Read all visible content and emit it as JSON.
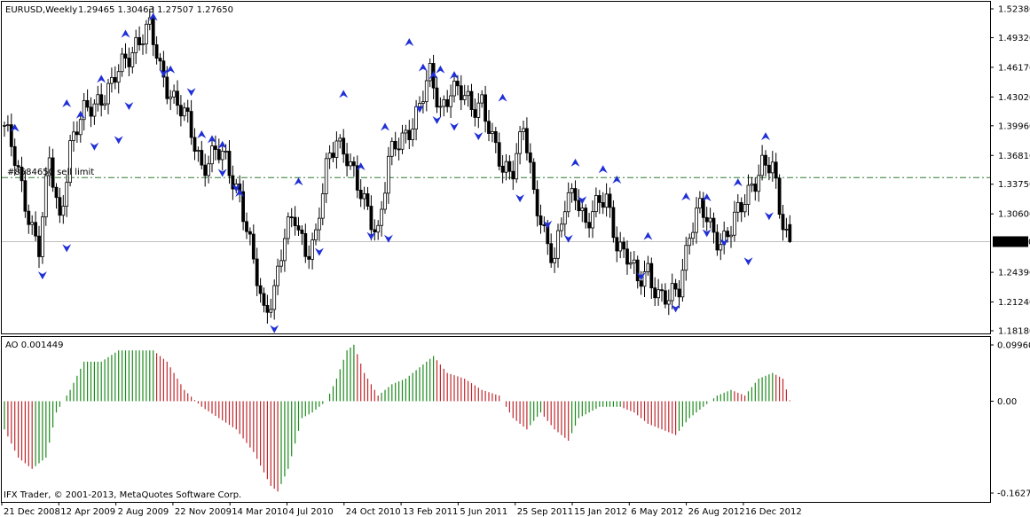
{
  "window": {
    "symbol_header": "EURUSD,Weekly",
    "ohlc_header": "1.29465 1.30463 1.27507 1.27650",
    "level_label": "#8584650 sell limit",
    "copyright": "IFX Trader, © 2001-2013, MetaQuotes Software Corp."
  },
  "colors": {
    "background": "#ffffff",
    "candle": "#000000",
    "fractal": "#1f2fd6",
    "sell_limit_line": "#2e7d32",
    "price_line": "#c0c0c0",
    "ao_up": "#1b8a1b",
    "ao_down": "#c0262c"
  },
  "chart_data": [
    {
      "type": "candlestick",
      "title": "EURUSD,Weekly",
      "timeframe": "Weekly",
      "ylim": [
        1.1818,
        1.5238
      ],
      "y_ticks": [
        "1.52380",
        "1.49320",
        "1.46170",
        "1.43020",
        "1.39960",
        "1.36810",
        "1.33750",
        "1.30600",
        "1.27650",
        "1.24390",
        "1.21240",
        "1.18180"
      ],
      "current_price": {
        "value": 1.2765,
        "label": "1.27650"
      },
      "last_bar": {
        "open": 1.29465,
        "high": 1.30463,
        "low": 1.27507,
        "close": 1.2765
      },
      "sell_limit_level": 1.3445,
      "x_ticks": [
        "21 Dec 2008",
        "12 Apr 2009",
        "2 Aug 2009",
        "22 Nov 2009",
        "14 Mar 2010",
        "4 Jul 2010",
        "24 Oct 2010",
        "13 Feb 2011",
        "5 Jun 2011",
        "25 Sep 2011",
        "15 Jan 2012",
        "6 May 2012",
        "26 Aug 2012",
        "16 Dec 2012"
      ],
      "close_path": [
        [
          0,
          1.4
        ],
        [
          6,
          1.32
        ],
        [
          10,
          1.27
        ],
        [
          13,
          1.36
        ],
        [
          16,
          1.3
        ],
        [
          19,
          1.38
        ],
        [
          23,
          1.41
        ],
        [
          27,
          1.43
        ],
        [
          31,
          1.44
        ],
        [
          35,
          1.47
        ],
        [
          38,
          1.49
        ],
        [
          42,
          1.5
        ],
        [
          45,
          1.46
        ],
        [
          49,
          1.43
        ],
        [
          53,
          1.4
        ],
        [
          57,
          1.36
        ],
        [
          61,
          1.37
        ],
        [
          64,
          1.36
        ],
        [
          68,
          1.33
        ],
        [
          72,
          1.25
        ],
        [
          75,
          1.2
        ],
        [
          78,
          1.23
        ],
        [
          81,
          1.28
        ],
        [
          84,
          1.3
        ],
        [
          87,
          1.27
        ],
        [
          90,
          1.28
        ],
        [
          93,
          1.35
        ],
        [
          96,
          1.39
        ],
        [
          99,
          1.37
        ],
        [
          102,
          1.33
        ],
        [
          105,
          1.31
        ],
        [
          108,
          1.29
        ],
        [
          111,
          1.36
        ],
        [
          114,
          1.38
        ],
        [
          117,
          1.4
        ],
        [
          120,
          1.42
        ],
        [
          123,
          1.45
        ],
        [
          126,
          1.42
        ],
        [
          129,
          1.44
        ],
        [
          132,
          1.43
        ],
        [
          135,
          1.42
        ],
        [
          138,
          1.43
        ],
        [
          141,
          1.38
        ],
        [
          144,
          1.35
        ],
        [
          147,
          1.36
        ],
        [
          150,
          1.4
        ],
        [
          153,
          1.32
        ],
        [
          156,
          1.29
        ],
        [
          159,
          1.26
        ],
        [
          162,
          1.31
        ],
        [
          165,
          1.33
        ],
        [
          168,
          1.3
        ],
        [
          171,
          1.31
        ],
        [
          174,
          1.32
        ],
        [
          177,
          1.28
        ],
        [
          180,
          1.26
        ],
        [
          183,
          1.23
        ],
        [
          186,
          1.25
        ],
        [
          189,
          1.22
        ],
        [
          192,
          1.21
        ],
        [
          195,
          1.23
        ],
        [
          198,
          1.29
        ],
        [
          201,
          1.31
        ],
        [
          204,
          1.29
        ],
        [
          207,
          1.28
        ],
        [
          210,
          1.29
        ],
        [
          213,
          1.31
        ],
        [
          216,
          1.34
        ],
        [
          219,
          1.36
        ],
        [
          222,
          1.35
        ],
        [
          224,
          1.31
        ],
        [
          227,
          1.2765
        ]
      ],
      "fractals": {
        "up": [
          [
            3,
            1.397
          ],
          [
            18,
            1.423
          ],
          [
            22,
            1.411
          ],
          [
            28,
            1.449
          ],
          [
            35,
            1.497
          ],
          [
            43,
            1.515
          ],
          [
            48,
            1.459
          ],
          [
            57,
            1.39
          ],
          [
            60,
            1.385
          ],
          [
            63,
            1.379
          ],
          [
            68,
            1.328
          ],
          [
            85,
            1.34
          ],
          [
            98,
            1.433
          ],
          [
            103,
            1.356
          ],
          [
            110,
            1.398
          ],
          [
            117,
            1.488
          ],
          [
            121,
            1.461
          ],
          [
            124,
            1.453
          ],
          [
            126,
            1.459
          ],
          [
            130,
            1.453
          ],
          [
            144,
            1.429
          ],
          [
            165,
            1.36
          ],
          [
            173,
            1.353
          ],
          [
            177,
            1.342
          ],
          [
            186,
            1.282
          ],
          [
            197,
            1.324
          ],
          [
            203,
            1.323
          ],
          [
            212,
            1.339
          ],
          [
            220,
            1.388
          ]
        ],
        "down": [
          [
            11,
            1.241
          ],
          [
            18,
            1.27
          ],
          [
            26,
            1.378
          ],
          [
            33,
            1.385
          ],
          [
            36,
            1.421
          ],
          [
            46,
            1.456
          ],
          [
            54,
            1.436
          ],
          [
            63,
            1.35
          ],
          [
            67,
            1.334
          ],
          [
            78,
            1.184
          ],
          [
            91,
            1.266
          ],
          [
            106,
            1.283
          ],
          [
            111,
            1.28
          ],
          [
            120,
            1.418
          ],
          [
            125,
            1.406
          ],
          [
            130,
            1.399
          ],
          [
            137,
            1.389
          ],
          [
            149,
            1.323
          ],
          [
            157,
            1.295
          ],
          [
            163,
            1.28
          ],
          [
            167,
            1.321
          ],
          [
            184,
            1.24
          ],
          [
            194,
            1.206
          ],
          [
            203,
            1.286
          ],
          [
            208,
            1.276
          ],
          [
            215,
            1.256
          ],
          [
            221,
            1.304
          ]
        ]
      }
    },
    {
      "type": "bar",
      "title": "AO 0.001449",
      "indicator": "Awesome Oscillator",
      "value_label": "0.001449",
      "ylim": [
        -0.16271,
        0.0996
      ],
      "y_ticks": [
        "0.099609",
        "0.00",
        "-0.16271"
      ],
      "zero_line": 0.0,
      "path": [
        [
          0,
          -0.05
        ],
        [
          4,
          -0.1
        ],
        [
          8,
          -0.12
        ],
        [
          12,
          -0.1
        ],
        [
          15,
          -0.02
        ],
        [
          19,
          0.02
        ],
        [
          23,
          0.07
        ],
        [
          28,
          0.07
        ],
        [
          33,
          0.09
        ],
        [
          38,
          0.09
        ],
        [
          43,
          0.09
        ],
        [
          47,
          0.07
        ],
        [
          52,
          0.02
        ],
        [
          57,
          -0.01
        ],
        [
          62,
          -0.03
        ],
        [
          67,
          -0.05
        ],
        [
          72,
          -0.09
        ],
        [
          77,
          -0.15
        ],
        [
          79,
          -0.16
        ],
        [
          82,
          -0.12
        ],
        [
          86,
          -0.03
        ],
        [
          89,
          -0.02
        ],
        [
          93,
          0.0
        ],
        [
          96,
          0.04
        ],
        [
          99,
          0.09
        ],
        [
          101,
          0.1
        ],
        [
          104,
          0.05
        ],
        [
          108,
          0.01
        ],
        [
          112,
          0.03
        ],
        [
          116,
          0.04
        ],
        [
          120,
          0.06
        ],
        [
          124,
          0.08
        ],
        [
          128,
          0.05
        ],
        [
          133,
          0.04
        ],
        [
          138,
          0.02
        ],
        [
          143,
          0.01
        ],
        [
          147,
          -0.03
        ],
        [
          151,
          -0.05
        ],
        [
          155,
          -0.02
        ],
        [
          159,
          -0.05
        ],
        [
          163,
          -0.07
        ],
        [
          166,
          -0.03
        ],
        [
          172,
          -0.01
        ],
        [
          178,
          -0.01
        ],
        [
          182,
          -0.02
        ],
        [
          186,
          -0.04
        ],
        [
          190,
          -0.05
        ],
        [
          194,
          -0.06
        ],
        [
          198,
          -0.03
        ],
        [
          202,
          -0.01
        ],
        [
          206,
          0.01
        ],
        [
          210,
          0.02
        ],
        [
          214,
          0.01
        ],
        [
          218,
          0.04
        ],
        [
          222,
          0.05
        ],
        [
          225,
          0.04
        ],
        [
          227,
          0.0015
        ]
      ]
    }
  ]
}
